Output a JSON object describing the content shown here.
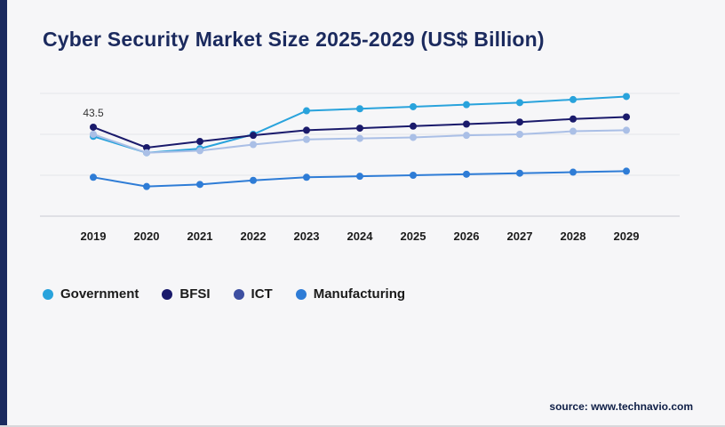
{
  "page": {
    "title": "Cyber Security Market Size 2025-2029 (US$ Billion)",
    "source": "source: www.technavio.com",
    "accent_bar_color": "#1a2a5e",
    "background": "#f6f6f8"
  },
  "chart_data": {
    "type": "line",
    "title": "Cyber Security Market Size 2025-2029 (US$ Billion)",
    "x": [
      2019,
      2020,
      2021,
      2022,
      2023,
      2024,
      2025,
      2026,
      2027,
      2028,
      2029
    ],
    "series": [
      {
        "name": "Government",
        "color": "#29a3dc",
        "values": [
          39,
          31,
          33,
          40,
          51.5,
          52.5,
          53.5,
          54.5,
          55.5,
          57,
          58.5
        ]
      },
      {
        "name": "BFSI",
        "color": "#1a1a6b",
        "values": [
          43.5,
          33.5,
          36.5,
          39.5,
          42,
          43,
          44,
          45,
          46,
          47.5,
          48.5
        ]
      },
      {
        "name": "ICT",
        "color": "#3d4fa1",
        "line_color": "#aabfe6",
        "values": [
          40,
          31,
          32,
          35,
          37.5,
          38,
          38.5,
          39.5,
          40,
          41.5,
          42
        ]
      },
      {
        "name": "Manufacturing",
        "color": "#2e7cd6",
        "values": [
          19,
          14.5,
          15.5,
          17.5,
          19,
          19.5,
          20,
          20.5,
          21,
          21.5,
          22
        ]
      }
    ],
    "xlabel": "",
    "ylabel": "",
    "ylim": [
      0,
      60
    ],
    "gridlines": [
      0,
      20,
      40,
      60
    ],
    "grid": true,
    "legend_position": "bottom",
    "annotations": [
      {
        "series": "BFSI",
        "x": 2019,
        "text": "43.5"
      }
    ]
  }
}
